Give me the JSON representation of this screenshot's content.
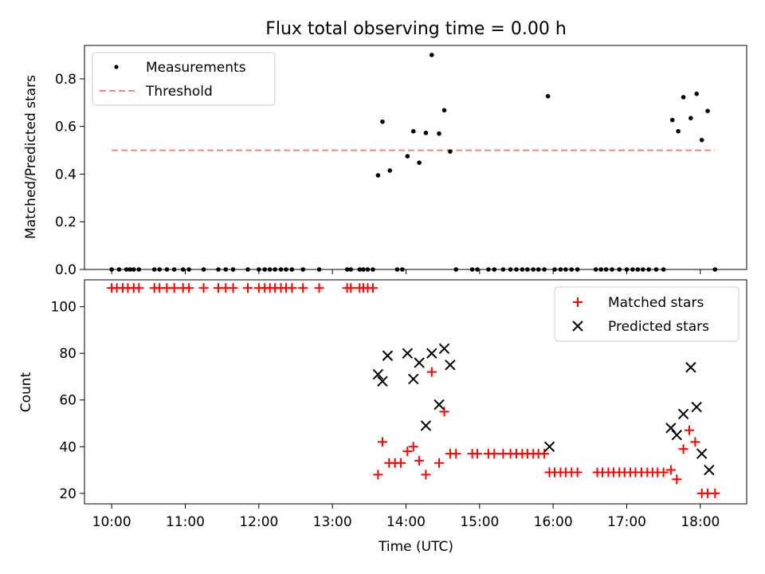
{
  "chart_data": [
    {
      "type": "scatter",
      "title": "Flux total observing time = 0.00 h",
      "xlabel": "",
      "ylabel": "Matched/Predicted stars",
      "xlim": [
        9.63,
        18.63
      ],
      "ylim": [
        0,
        0.94
      ],
      "yticks": [
        0.0,
        0.2,
        0.4,
        0.6,
        0.8
      ],
      "ytick_labels": [
        "0.0",
        "0.2",
        "0.4",
        "0.6",
        "0.8"
      ],
      "legend": {
        "position": "top-left",
        "entries": [
          {
            "label": "Measurements",
            "marker": "dot",
            "color": "#000000"
          },
          {
            "label": "Threshold",
            "marker": "dashed-line",
            "color": "#ff7f7f"
          }
        ]
      },
      "threshold": {
        "value": 0.5,
        "x_start": 10.0,
        "x_end": 18.2,
        "color": "#ff7f7f"
      },
      "measurements": {
        "x": [
          10.0,
          10.1,
          10.2,
          10.25,
          10.3,
          10.37,
          10.58,
          10.65,
          10.75,
          10.85,
          10.97,
          11.05,
          11.25,
          11.45,
          11.55,
          11.65,
          11.85,
          12.0,
          12.08,
          12.15,
          12.22,
          12.3,
          12.37,
          12.45,
          12.6,
          12.82,
          13.2,
          13.25,
          13.37,
          13.42,
          13.48,
          13.55,
          13.62,
          13.68,
          13.78,
          13.88,
          13.95,
          14.02,
          14.1,
          14.18,
          14.27,
          14.35,
          14.45,
          14.52,
          14.6,
          14.68,
          14.9,
          14.97,
          15.12,
          15.2,
          15.32,
          15.42,
          15.5,
          15.58,
          15.65,
          15.73,
          15.8,
          15.88,
          15.93,
          16.02,
          16.1,
          16.17,
          16.25,
          16.33,
          16.58,
          16.65,
          16.72,
          16.8,
          16.9,
          17.0,
          17.08,
          17.15,
          17.22,
          17.3,
          17.4,
          17.5,
          17.62,
          17.7,
          17.77,
          17.87,
          17.95,
          18.02,
          18.1,
          18.2
        ],
        "y": [
          0,
          0,
          0,
          0,
          0,
          0,
          0,
          0,
          0,
          0,
          0,
          0,
          0,
          0,
          0,
          0,
          0,
          0,
          0,
          0,
          0,
          0,
          0,
          0,
          0,
          0,
          0,
          0,
          0,
          0,
          0,
          0,
          0.395,
          0.62,
          0.415,
          0,
          0,
          0.475,
          0.58,
          0.448,
          0.573,
          0.9,
          0.57,
          0.668,
          0.495,
          0,
          0,
          0,
          0,
          0,
          0,
          0,
          0,
          0,
          0,
          0,
          0,
          0,
          0.727,
          0,
          0,
          0,
          0,
          0,
          0,
          0,
          0,
          0,
          0,
          0,
          0,
          0,
          0,
          0,
          0,
          0,
          0.627,
          0.58,
          0.723,
          0.635,
          0.737,
          0.543,
          0.665,
          0
        ],
        "color": "#000000"
      }
    },
    {
      "type": "scatter",
      "xlabel": "Time (UTC)",
      "ylabel": "Count",
      "xlim": [
        9.63,
        18.63
      ],
      "ylim": [
        15.5,
        111.5
      ],
      "yticks": [
        20,
        40,
        60,
        80,
        100
      ],
      "ytick_labels": [
        "20",
        "40",
        "60",
        "80",
        "100"
      ],
      "xticks": [
        10,
        11,
        12,
        13,
        14,
        15,
        16,
        17,
        18
      ],
      "xtick_labels": [
        "10:00",
        "11:00",
        "12:00",
        "13:00",
        "14:00",
        "15:00",
        "16:00",
        "17:00",
        "18:00"
      ],
      "legend": {
        "position": "top-right",
        "entries": [
          {
            "label": "Matched stars",
            "marker": "plus",
            "color": "#ff0000"
          },
          {
            "label": "Predicted stars",
            "marker": "x",
            "color": "#000000"
          }
        ]
      },
      "matched": {
        "x": [
          10.0,
          10.07,
          10.15,
          10.22,
          10.3,
          10.37,
          10.58,
          10.65,
          10.75,
          10.85,
          10.97,
          11.05,
          11.25,
          11.45,
          11.55,
          11.65,
          11.85,
          12.0,
          12.08,
          12.15,
          12.22,
          12.3,
          12.37,
          12.45,
          12.6,
          12.82,
          13.2,
          13.25,
          13.37,
          13.42,
          13.48,
          13.55,
          13.62,
          13.68,
          13.77,
          13.85,
          13.93,
          14.02,
          14.1,
          14.18,
          14.27,
          14.35,
          14.45,
          14.52,
          14.6,
          14.68,
          14.9,
          14.97,
          15.12,
          15.2,
          15.32,
          15.42,
          15.5,
          15.58,
          15.65,
          15.73,
          15.8,
          15.88,
          15.95,
          16.02,
          16.1,
          16.17,
          16.25,
          16.33,
          16.6,
          16.67,
          16.75,
          16.82,
          16.9,
          16.97,
          17.05,
          17.12,
          17.2,
          17.28,
          17.35,
          17.42,
          17.5,
          17.6,
          17.68,
          17.77,
          17.85,
          17.93,
          18.02,
          18.1,
          18.2
        ],
        "y": [
          108,
          108,
          108,
          108,
          108,
          108,
          108,
          108,
          108,
          108,
          108,
          108,
          108,
          108,
          108,
          108,
          108,
          108,
          108,
          108,
          108,
          108,
          108,
          108,
          108,
          108,
          108,
          108,
          108,
          108,
          108,
          108,
          28,
          42,
          33,
          33,
          33,
          38,
          40,
          34,
          28,
          72,
          33,
          55,
          37,
          37,
          37,
          37,
          37,
          37,
          37,
          37,
          37,
          37,
          37,
          37,
          37,
          37,
          29,
          29,
          29,
          29,
          29,
          29,
          29,
          29,
          29,
          29,
          29,
          29,
          29,
          29,
          29,
          29,
          29,
          29,
          29,
          30,
          26,
          39,
          47,
          42,
          20,
          20,
          20
        ],
        "color": "#ff0000"
      },
      "predicted": {
        "x": [
          13.62,
          13.68,
          13.75,
          14.02,
          14.1,
          14.18,
          14.27,
          14.35,
          14.45,
          14.52,
          14.6,
          15.95,
          17.6,
          17.68,
          17.77,
          17.87,
          17.95,
          18.02,
          18.12
        ],
        "y": [
          71,
          68,
          79,
          80,
          69,
          76,
          49,
          80,
          58,
          82,
          75,
          40,
          48,
          45,
          54,
          74,
          57,
          37,
          30
        ],
        "color": "#000000"
      }
    }
  ]
}
